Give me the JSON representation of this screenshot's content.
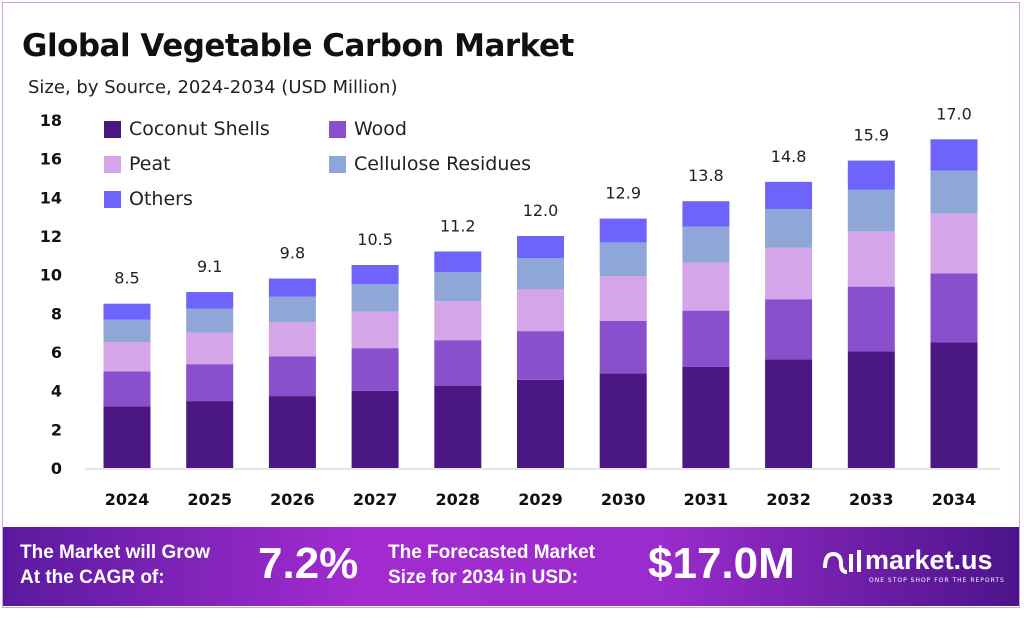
{
  "title": "Global Vegetable Carbon Market",
  "subtitle": "Size, by Source, 2024-2034 (USD Million)",
  "chart_data": {
    "type": "bar",
    "stacked": true,
    "title": "Global Vegetable Carbon Market",
    "subtitle": "Size, by Source, 2024-2034 (USD Million)",
    "xlabel": "",
    "ylabel": "",
    "ylim": [
      0,
      18
    ],
    "yticks": [
      0,
      2,
      4,
      6,
      8,
      10,
      12,
      14,
      16,
      18
    ],
    "grid": false,
    "legend_position": "top-left",
    "categories": [
      "2024",
      "2025",
      "2026",
      "2027",
      "2028",
      "2029",
      "2030",
      "2031",
      "2032",
      "2033",
      "2034"
    ],
    "totals": [
      8.5,
      9.1,
      9.8,
      10.5,
      11.2,
      12.0,
      12.9,
      13.8,
      14.8,
      15.9,
      17.0
    ],
    "total_labels": [
      "8.5",
      "9.1",
      "9.8",
      "10.5",
      "11.2",
      "12.0",
      "12.9",
      "13.8",
      "14.8",
      "15.9",
      "17.0"
    ],
    "series": [
      {
        "name": "Coconut Shells",
        "color": "#4b1782",
        "values": [
          3.19,
          3.46,
          3.72,
          3.99,
          4.26,
          4.56,
          4.9,
          5.24,
          5.62,
          6.04,
          6.49
        ]
      },
      {
        "name": "Wood",
        "color": "#8a4fcc",
        "values": [
          1.81,
          1.91,
          2.06,
          2.21,
          2.35,
          2.52,
          2.71,
          2.9,
          3.11,
          3.34,
          3.57
        ]
      },
      {
        "name": "Peat",
        "color": "#d4a5e8",
        "values": [
          1.51,
          1.64,
          1.76,
          1.89,
          2.02,
          2.16,
          2.32,
          2.48,
          2.66,
          2.86,
          3.11
        ]
      },
      {
        "name": "Cellulose Residues",
        "color": "#8ea6d8",
        "values": [
          1.16,
          1.23,
          1.32,
          1.42,
          1.51,
          1.62,
          1.74,
          1.86,
          2.0,
          2.15,
          2.22
        ]
      },
      {
        "name": "Others",
        "color": "#6e63fb",
        "values": [
          0.83,
          0.86,
          0.94,
          0.99,
          1.06,
          1.14,
          1.23,
          1.32,
          1.41,
          1.51,
          1.61
        ]
      }
    ]
  },
  "footer": {
    "cagr_label_line1": "The Market will Grow",
    "cagr_label_line2": "At the CAGR of:",
    "cagr_value": "7.2%",
    "forecast_label_line1": "The Forecasted Market",
    "forecast_label_line2": "Size for 2034 in USD:",
    "forecast_value": "$17.0M",
    "brand": "market.us",
    "brand_tagline": "ONE STOP SHOP FOR THE REPORTS"
  }
}
